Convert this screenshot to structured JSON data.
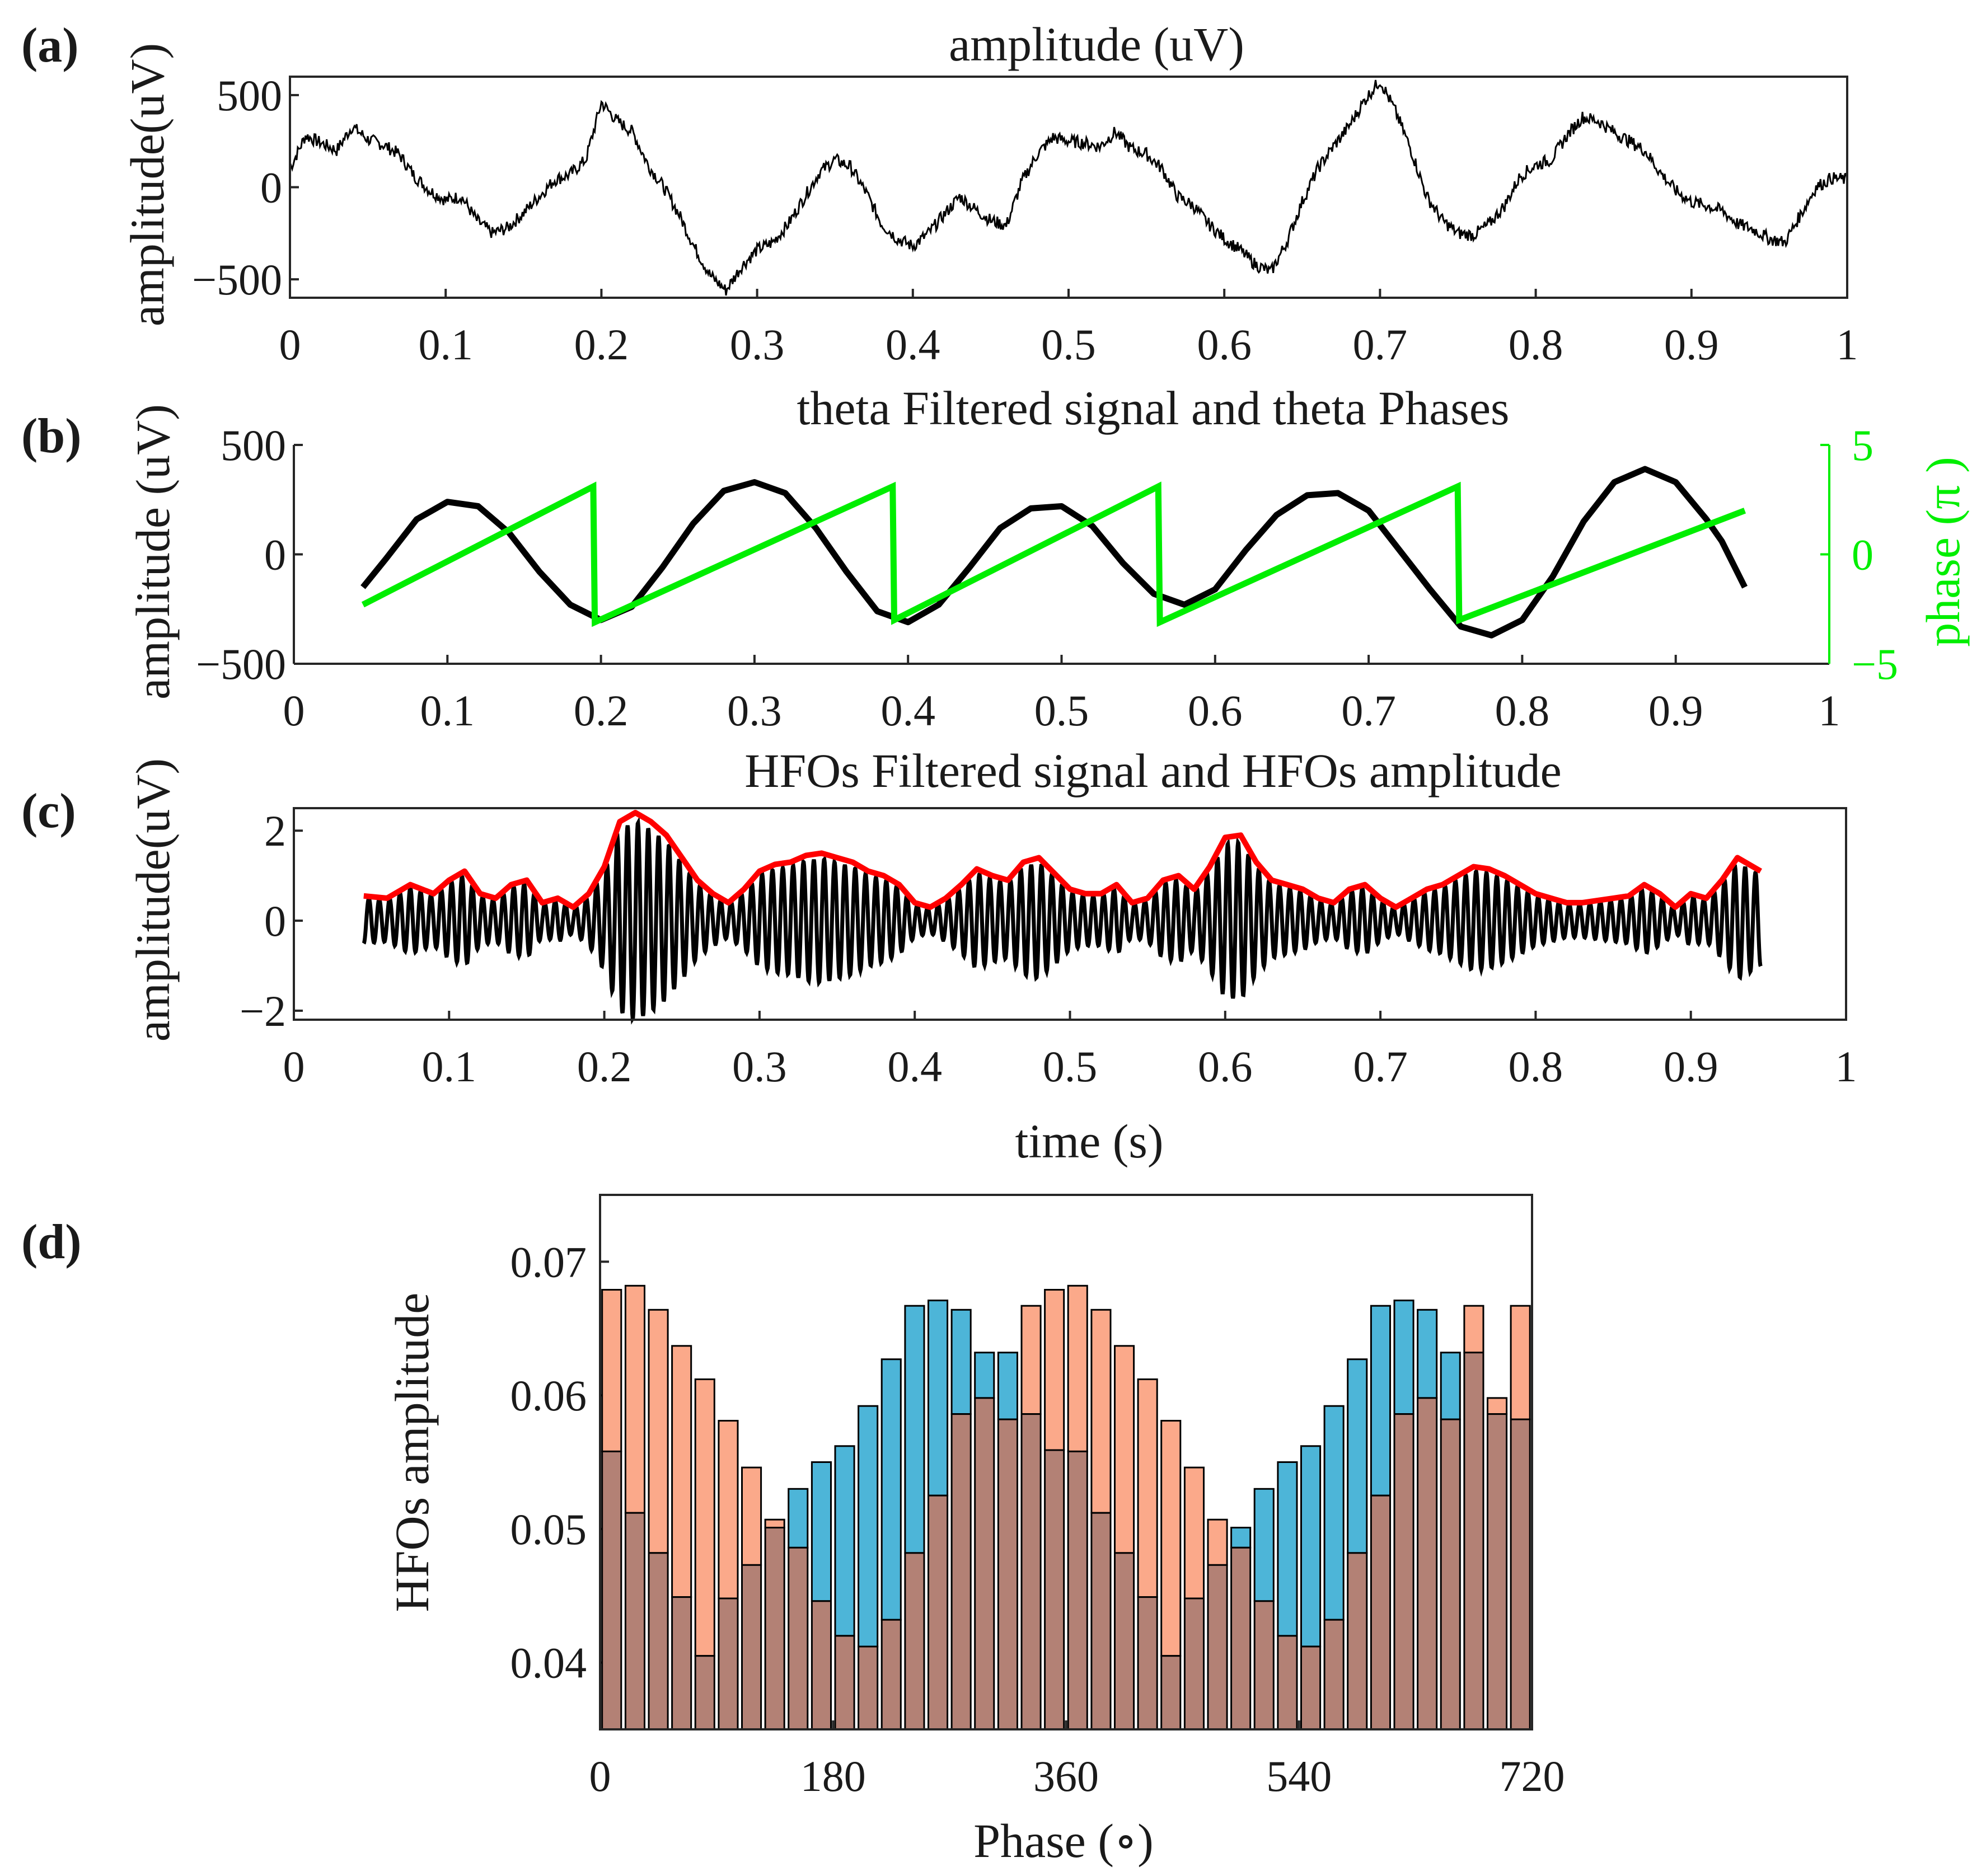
{
  "figure": {
    "colors": {
      "raw": "#000000",
      "theta": "#000000",
      "phase": "#00ee00",
      "hfo": "#000000",
      "envelope": "#ff0000",
      "bar_blue": "#4db5d8",
      "bar_orange": "#fba98a",
      "bar_overlap": "#b38175",
      "axes": "#262626"
    }
  },
  "panels": [
    {
      "id": "a",
      "label": "(a)",
      "title": "amplitude (uV)",
      "ylabel": "amplitude(uV)",
      "xlabel": "",
      "xticks": [
        "0",
        "0.1",
        "0.2",
        "0.3",
        "0.4",
        "0.5",
        "0.6",
        "0.7",
        "0.8",
        "0.9",
        "1"
      ],
      "yticks": [
        "500",
        "0",
        "−500"
      ],
      "xlim": [
        0,
        1
      ],
      "ylim": [
        -600,
        600
      ]
    },
    {
      "id": "b",
      "label": "(b)",
      "title": "theta Filtered signal and theta Phases",
      "ylabel": "amplitude (uV)",
      "ylabel_right": "phase (π )",
      "xlabel": "",
      "xticks": [
        "0",
        "0.1",
        "0.2",
        "0.3",
        "0.4",
        "0.5",
        "0.6",
        "0.7",
        "0.8",
        "0.9",
        "1"
      ],
      "yticks": [
        "500",
        "0",
        "−500"
      ],
      "yticks_right": [
        "5",
        "0",
        "−5"
      ],
      "xlim": [
        0,
        1
      ],
      "ylim": [
        -500,
        500
      ],
      "ylim_right": [
        -5,
        5
      ]
    },
    {
      "id": "c",
      "label": "(c)",
      "title": "HFOs Filtered signal and HFOs amplitude",
      "ylabel": "amplitude(uV)",
      "xlabel": "time (s)",
      "xticks": [
        "0",
        "0.1",
        "0.2",
        "0.3",
        "0.4",
        "0.5",
        "0.6",
        "0.7",
        "0.8",
        "0.9",
        "1"
      ],
      "yticks": [
        "2",
        "0",
        "−2"
      ],
      "xlim": [
        0,
        1
      ],
      "ylim": [
        -2.2,
        2.5
      ]
    },
    {
      "id": "d",
      "label": "(d)",
      "title": "",
      "ylabel": "HFOs amplitude",
      "xlabel": "Phase (∘)",
      "xticks": [
        "0",
        "180",
        "360",
        "540",
        "720"
      ],
      "yticks": [
        "0.07",
        "0.06",
        "0.05",
        "0.04"
      ],
      "xlim": [
        0,
        720
      ],
      "ylim": [
        0.035,
        0.075
      ]
    }
  ],
  "chart_data": [
    {
      "type": "line",
      "panel": "a",
      "title": "amplitude (uV)",
      "xlabel": "",
      "ylabel": "amplitude(uV)",
      "xlim": [
        0,
        1
      ],
      "ylim": [
        -600,
        600
      ],
      "series": [
        {
          "name": "raw signal",
          "x": [
            0,
            0.01,
            0.02,
            0.03,
            0.04,
            0.05,
            0.06,
            0.07,
            0.08,
            0.09,
            0.1,
            0.11,
            0.12,
            0.13,
            0.14,
            0.15,
            0.16,
            0.17,
            0.18,
            0.19,
            0.2,
            0.21,
            0.22,
            0.23,
            0.24,
            0.25,
            0.26,
            0.27,
            0.28,
            0.29,
            0.3,
            0.31,
            0.32,
            0.33,
            0.34,
            0.35,
            0.36,
            0.37,
            0.38,
            0.39,
            0.4,
            0.41,
            0.42,
            0.43,
            0.44,
            0.45,
            0.46,
            0.47,
            0.48,
            0.49,
            0.5,
            0.51,
            0.52,
            0.53,
            0.54,
            0.55,
            0.56,
            0.57,
            0.58,
            0.59,
            0.6,
            0.61,
            0.62,
            0.63,
            0.64,
            0.65,
            0.66,
            0.67,
            0.68,
            0.69,
            0.7,
            0.71,
            0.72,
            0.73,
            0.74,
            0.75,
            0.76,
            0.77,
            0.78,
            0.79,
            0.8,
            0.81,
            0.82,
            0.83,
            0.84,
            0.85,
            0.86,
            0.87,
            0.88,
            0.89,
            0.9,
            0.91,
            0.92,
            0.93,
            0.94,
            0.95,
            0.96,
            0.97,
            0.98,
            0.99,
            1.0
          ],
          "y": [
            100,
            280,
            240,
            200,
            330,
            260,
            230,
            180,
            60,
            -20,
            -70,
            -50,
            -180,
            -250,
            -220,
            -140,
            -50,
            40,
            70,
            150,
            460,
            360,
            300,
            120,
            0,
            -150,
            -330,
            -480,
            -560,
            -430,
            -340,
            -300,
            -200,
            -60,
            80,
            150,
            110,
            -30,
            -200,
            -280,
            -320,
            -250,
            -150,
            -50,
            -120,
            -180,
            -210,
            30,
            180,
            270,
            250,
            240,
            220,
            300,
            210,
            180,
            100,
            -50,
            -100,
            -200,
            -280,
            -340,
            -420,
            -460,
            -300,
            -80,
            100,
            220,
            330,
            470,
            580,
            410,
            200,
            -50,
            -180,
            -250,
            -260,
            -200,
            -100,
            60,
            120,
            150,
            280,
            380,
            360,
            300,
            250,
            200,
            80,
            -20,
            -80,
            -100,
            -130,
            -200,
            -230,
            -280,
            -300,
            -150,
            0,
            50,
            40
          ]
        }
      ]
    },
    {
      "type": "line",
      "panel": "b",
      "title": "theta Filtered signal and theta Phases",
      "xlabel": "",
      "ylabel": "amplitude (uV)",
      "ylabel_right": "phase (π )",
      "xlim": [
        0,
        1
      ],
      "ylim": [
        -500,
        500
      ],
      "ylim_right": [
        -5,
        5
      ],
      "series": [
        {
          "name": "theta filtered signal",
          "axis": "left",
          "x": [
            0.045,
            0.06,
            0.08,
            0.1,
            0.12,
            0.14,
            0.16,
            0.18,
            0.2,
            0.22,
            0.24,
            0.26,
            0.28,
            0.3,
            0.32,
            0.34,
            0.36,
            0.38,
            0.4,
            0.42,
            0.44,
            0.46,
            0.48,
            0.5,
            0.52,
            0.54,
            0.56,
            0.58,
            0.6,
            0.62,
            0.64,
            0.66,
            0.68,
            0.7,
            0.72,
            0.74,
            0.76,
            0.78,
            0.8,
            0.82,
            0.84,
            0.86,
            0.88,
            0.9,
            0.92,
            0.93,
            0.945
          ],
          "y": [
            -150,
            -20,
            160,
            240,
            220,
            100,
            -80,
            -230,
            -300,
            -240,
            -60,
            140,
            290,
            330,
            280,
            120,
            -80,
            -260,
            -310,
            -230,
            -60,
            120,
            210,
            220,
            130,
            -40,
            -180,
            -230,
            -160,
            20,
            180,
            270,
            280,
            200,
            20,
            -160,
            -330,
            -370,
            -300,
            -100,
            150,
            330,
            390,
            330,
            160,
            60,
            -150
          ]
        },
        {
          "name": "theta phase",
          "axis": "right",
          "x": [
            0.045,
            0.195,
            0.196,
            0.39,
            0.391,
            0.563,
            0.564,
            0.758,
            0.759,
            0.945
          ],
          "y": [
            -2.3,
            3.1,
            -3.1,
            3.1,
            -3.0,
            3.1,
            -3.1,
            3.1,
            -3.0,
            2.0
          ]
        }
      ]
    },
    {
      "type": "line",
      "panel": "c",
      "title": "HFOs Filtered signal and HFOs amplitude",
      "xlabel": "time (s)",
      "ylabel": "amplitude(uV)",
      "xlim": [
        0,
        1
      ],
      "ylim": [
        -2.2,
        2.5
      ],
      "series": [
        {
          "name": "HFOs filtered signal (oscillation, ~150 Hz, bounded by the envelope)",
          "x_range": [
            0.045,
            0.945
          ]
        },
        {
          "name": "HFOs amplitude envelope",
          "x": [
            0.045,
            0.06,
            0.075,
            0.09,
            0.1,
            0.11,
            0.12,
            0.13,
            0.14,
            0.15,
            0.16,
            0.17,
            0.18,
            0.19,
            0.2,
            0.21,
            0.22,
            0.23,
            0.24,
            0.25,
            0.26,
            0.27,
            0.28,
            0.29,
            0.3,
            0.31,
            0.32,
            0.33,
            0.34,
            0.35,
            0.36,
            0.37,
            0.38,
            0.39,
            0.4,
            0.41,
            0.42,
            0.43,
            0.44,
            0.45,
            0.46,
            0.47,
            0.48,
            0.49,
            0.5,
            0.51,
            0.52,
            0.53,
            0.54,
            0.55,
            0.56,
            0.57,
            0.58,
            0.59,
            0.6,
            0.61,
            0.62,
            0.63,
            0.64,
            0.65,
            0.66,
            0.67,
            0.68,
            0.69,
            0.7,
            0.71,
            0.72,
            0.73,
            0.74,
            0.75,
            0.76,
            0.77,
            0.78,
            0.79,
            0.8,
            0.81,
            0.82,
            0.83,
            0.84,
            0.85,
            0.86,
            0.87,
            0.88,
            0.89,
            0.9,
            0.91,
            0.92,
            0.93,
            0.945
          ],
          "y": [
            0.55,
            0.5,
            0.8,
            0.6,
            0.9,
            1.1,
            0.6,
            0.5,
            0.8,
            0.9,
            0.4,
            0.5,
            0.3,
            0.6,
            1.2,
            2.2,
            2.4,
            2.2,
            1.9,
            1.4,
            0.9,
            0.6,
            0.4,
            0.7,
            1.1,
            1.25,
            1.3,
            1.45,
            1.5,
            1.4,
            1.3,
            1.1,
            1.0,
            0.8,
            0.4,
            0.3,
            0.5,
            0.8,
            1.15,
            1.0,
            0.9,
            1.3,
            1.4,
            1.05,
            0.7,
            0.6,
            0.6,
            0.8,
            0.4,
            0.5,
            0.9,
            1.0,
            0.7,
            1.2,
            1.85,
            1.9,
            1.3,
            0.9,
            0.8,
            0.7,
            0.5,
            0.4,
            0.7,
            0.8,
            0.5,
            0.3,
            0.5,
            0.7,
            0.8,
            1.0,
            1.2,
            1.15,
            1.0,
            0.8,
            0.6,
            0.5,
            0.4,
            0.4,
            0.45,
            0.5,
            0.55,
            0.8,
            0.6,
            0.3,
            0.6,
            0.5,
            0.9,
            1.4,
            1.1
          ]
        }
      ]
    },
    {
      "type": "bar",
      "panel": "d",
      "title": "",
      "xlabel": "Phase (∘)",
      "ylabel": "HFOs amplitude",
      "xlim": [
        0,
        720
      ],
      "ylim": [
        0.035,
        0.075
      ],
      "x": [
        9,
        27,
        45,
        63,
        81,
        99,
        117,
        135,
        153,
        171,
        189,
        207,
        225,
        243,
        261,
        279,
        297,
        315,
        333,
        351,
        369,
        387,
        405,
        423,
        441,
        459,
        477,
        495,
        513,
        531,
        549,
        567,
        585,
        603,
        621,
        639,
        657,
        675,
        693,
        711
      ],
      "series": [
        {
          "name": "blue",
          "values": [
            0.0558,
            0.0512,
            0.0482,
            0.0449,
            0.0405,
            0.0448,
            0.0473,
            0.0501,
            0.053,
            0.055,
            0.0562,
            0.0592,
            0.0627,
            0.0667,
            0.0671,
            0.0664,
            0.0632,
            0.0632,
            0.0586,
            0.0559,
            0.0558,
            0.0512,
            0.0482,
            0.0449,
            0.0405,
            0.0448,
            0.0473,
            0.0501,
            0.053,
            0.055,
            0.0562,
            0.0592,
            0.0627,
            0.0667,
            0.0671,
            0.0664,
            0.0632,
            0.0632,
            0.0586,
            0.0582
          ]
        },
        {
          "name": "orange",
          "values": [
            0.0679,
            0.0682,
            0.0664,
            0.0637,
            0.0612,
            0.0581,
            0.0546,
            0.0507,
            0.0486,
            0.0446,
            0.042,
            0.0412,
            0.0432,
            0.0482,
            0.0525,
            0.0586,
            0.0598,
            0.0582,
            0.0667,
            0.0679,
            0.0682,
            0.0664,
            0.0637,
            0.0612,
            0.0581,
            0.0546,
            0.0507,
            0.0486,
            0.0446,
            0.042,
            0.0412,
            0.0432,
            0.0482,
            0.0525,
            0.0586,
            0.0598,
            0.0582,
            0.0667,
            0.0598,
            0.0667
          ]
        }
      ]
    }
  ]
}
